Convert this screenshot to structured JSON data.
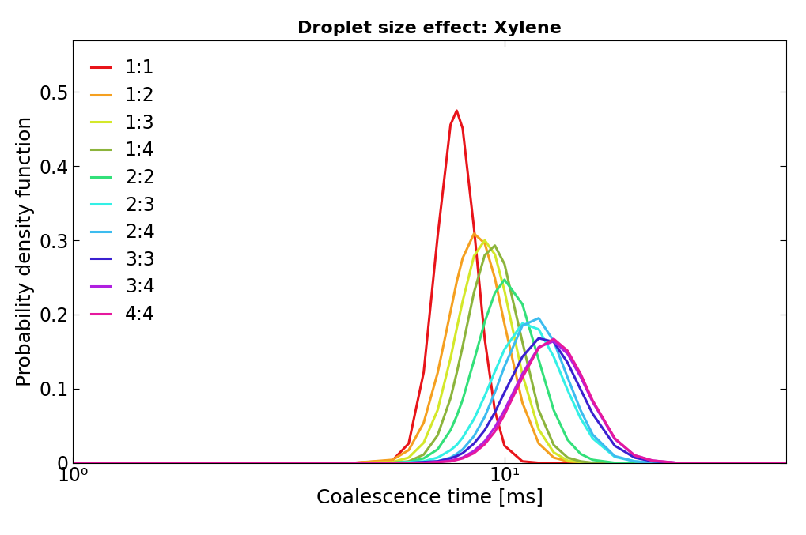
{
  "chart_data": {
    "type": "line",
    "title": "Droplet size effect: Xylene",
    "x_label": "Coalescence time [ms]",
    "y_label": "Probability density function",
    "log": "x",
    "grid": false,
    "legend": "upper left",
    "xlim": [
      1,
      45
    ],
    "xticks": [
      {
        "value": 1,
        "label": "10⁰"
      },
      {
        "value": 10,
        "label": "10¹"
      }
    ],
    "ylim": [
      0,
      0.57
    ],
    "yticks": [
      0,
      0.1,
      0.2,
      0.3,
      0.4,
      0.5
    ],
    "x": [
      1,
      4.5,
      5.5,
      6,
      6.5,
      7,
      7.5,
      7.75,
      8,
      8.5,
      9,
      9.5,
      10,
      11,
      12,
      13,
      14,
      15,
      16,
      18,
      20,
      22,
      25,
      30,
      45
    ],
    "series": [
      {
        "name": "1:1",
        "color": "#e8141a",
        "values": [
          0,
          0,
          0.003,
          0.026,
          0.122,
          0.305,
          0.456,
          0.475,
          0.451,
          0.316,
          0.167,
          0.07,
          0.023,
          0.002,
          0,
          0,
          0,
          0,
          0,
          0,
          0,
          0,
          0,
          0,
          0
        ]
      },
      {
        "name": "1:2",
        "color": "#f5a020",
        "values": [
          0,
          0,
          0.004,
          0.017,
          0.054,
          0.121,
          0.204,
          0.244,
          0.276,
          0.309,
          0.296,
          0.249,
          0.187,
          0.081,
          0.026,
          0.007,
          0.002,
          0,
          0,
          0,
          0,
          0,
          0,
          0,
          0
        ]
      },
      {
        "name": "1:3",
        "color": "#d4e82a",
        "values": [
          0,
          0,
          0.001,
          0.007,
          0.027,
          0.071,
          0.141,
          0.181,
          0.218,
          0.279,
          0.3,
          0.281,
          0.232,
          0.119,
          0.045,
          0.014,
          0.003,
          0.001,
          0,
          0,
          0,
          0,
          0,
          0,
          0
        ]
      },
      {
        "name": "1:4",
        "color": "#8cb43c",
        "values": [
          0,
          0,
          0,
          0.002,
          0.011,
          0.037,
          0.087,
          0.121,
          0.157,
          0.23,
          0.28,
          0.293,
          0.268,
          0.163,
          0.071,
          0.024,
          0.007,
          0.002,
          0,
          0,
          0,
          0,
          0,
          0,
          0
        ]
      },
      {
        "name": "2:2",
        "color": "#33e07a",
        "values": [
          0,
          0,
          0,
          0.001,
          0.006,
          0.018,
          0.044,
          0.063,
          0.085,
          0.138,
          0.19,
          0.229,
          0.247,
          0.214,
          0.139,
          0.071,
          0.031,
          0.012,
          0.004,
          0,
          0,
          0,
          0,
          0,
          0
        ]
      },
      {
        "name": "2:3",
        "color": "#33f0e6",
        "values": [
          0,
          0,
          0,
          0.001,
          0.002,
          0.007,
          0.017,
          0.024,
          0.034,
          0.059,
          0.09,
          0.123,
          0.153,
          0.188,
          0.18,
          0.143,
          0.098,
          0.06,
          0.033,
          0.008,
          0.002,
          0,
          0,
          0,
          0
        ]
      },
      {
        "name": "2:4",
        "color": "#3cbcef",
        "values": [
          0,
          0,
          0,
          0,
          0.001,
          0.002,
          0.007,
          0.012,
          0.018,
          0.036,
          0.062,
          0.095,
          0.13,
          0.185,
          0.195,
          0.164,
          0.115,
          0.071,
          0.038,
          0.009,
          0.002,
          0,
          0,
          0,
          0
        ]
      },
      {
        "name": "3:3",
        "color": "#3a20d0",
        "values": [
          0,
          0,
          0,
          0,
          0.001,
          0.002,
          0.006,
          0.009,
          0.013,
          0.026,
          0.044,
          0.068,
          0.095,
          0.143,
          0.168,
          0.163,
          0.135,
          0.099,
          0.066,
          0.023,
          0.007,
          0.002,
          0,
          0,
          0
        ]
      },
      {
        "name": "3:4",
        "color": "#b020e0",
        "values": [
          0,
          0,
          0,
          0,
          0,
          0.001,
          0.003,
          0.005,
          0.007,
          0.016,
          0.029,
          0.048,
          0.071,
          0.12,
          0.156,
          0.164,
          0.147,
          0.116,
          0.082,
          0.032,
          0.01,
          0.003,
          0,
          0,
          0
        ]
      },
      {
        "name": "4:4",
        "color": "#e6189e",
        "values": [
          0,
          0,
          0,
          0,
          0,
          0.001,
          0.002,
          0.004,
          0.006,
          0.013,
          0.025,
          0.042,
          0.065,
          0.115,
          0.155,
          0.167,
          0.151,
          0.12,
          0.084,
          0.033,
          0.01,
          0.003,
          0,
          0,
          0
        ]
      }
    ]
  }
}
